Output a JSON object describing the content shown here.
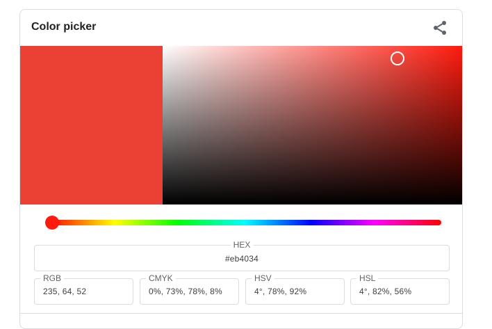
{
  "title": "Color picker",
  "color": {
    "hex": "#eb4034",
    "hue_hex": "#ff1a0d",
    "hue_fraction": 0.011,
    "saturation_fraction": 0.78,
    "value_fraction": 0.92
  },
  "fields": {
    "hex": {
      "label": "HEX",
      "value": "#eb4034"
    },
    "rgb": {
      "label": "RGB",
      "value": "235, 64, 52"
    },
    "cmyk": {
      "label": "CMYK",
      "value": "0%, 73%, 78%, 8%"
    },
    "hsv": {
      "label": "HSV",
      "value": "4°, 78%, 92%"
    },
    "hsl": {
      "label": "HSL",
      "value": "4°, 82%, 56%"
    }
  },
  "icons": {
    "share": "share-icon"
  }
}
